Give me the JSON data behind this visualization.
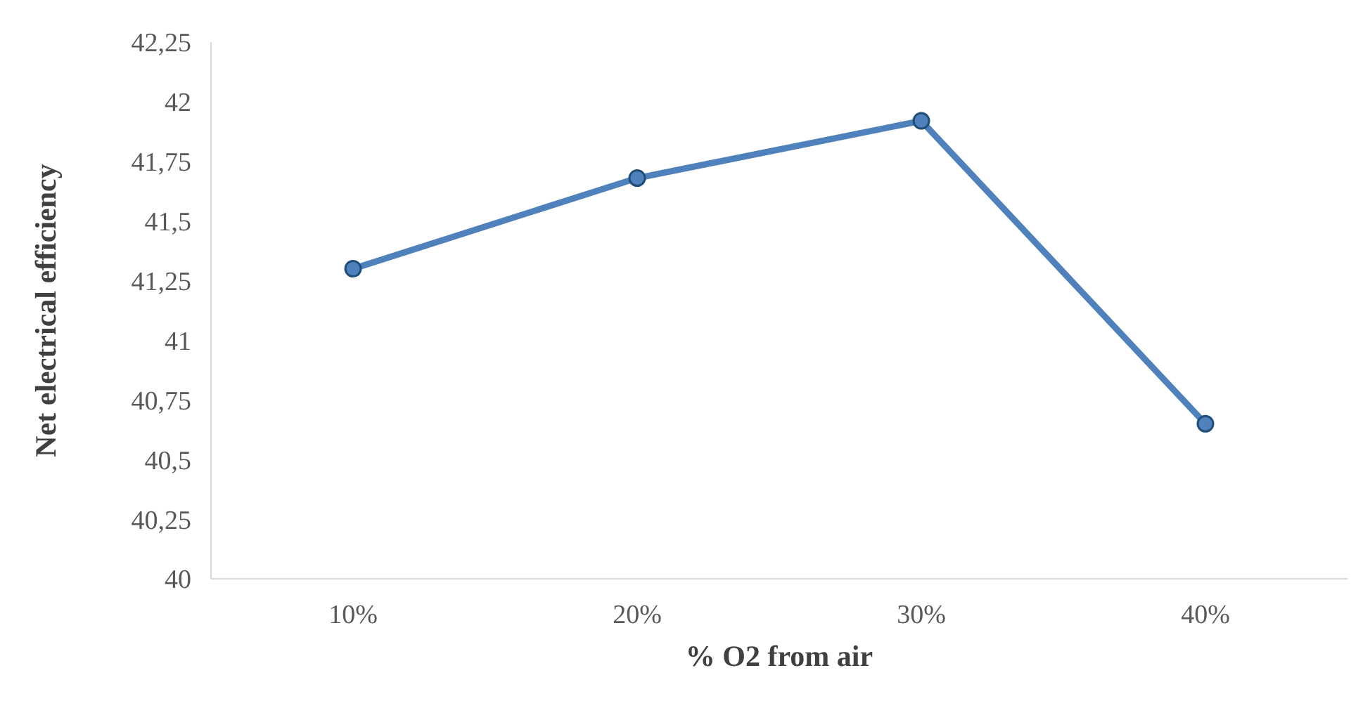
{
  "chart_data": {
    "type": "line",
    "xlabel": "% O2 from air",
    "ylabel": "Net electrical efficiency",
    "categories": [
      "10%",
      "20%",
      "30%",
      "40%"
    ],
    "series": [
      {
        "color": "#4f81bd",
        "values": [
          41.3,
          41.68,
          41.92,
          40.65
        ]
      }
    ],
    "ylim": [
      40,
      42.25
    ],
    "yticks": [
      {
        "value": 40,
        "label": "40"
      },
      {
        "value": 40.25,
        "label": "40,25"
      },
      {
        "value": 40.5,
        "label": "40,5"
      },
      {
        "value": 40.75,
        "label": "40,75"
      },
      {
        "value": 41,
        "label": "41"
      },
      {
        "value": 41.25,
        "label": "41,25"
      },
      {
        "value": 41.5,
        "label": "41,5"
      },
      {
        "value": 41.75,
        "label": "41,75"
      },
      {
        "value": 42,
        "label": "42"
      },
      {
        "value": 42.25,
        "label": "42,25"
      }
    ],
    "grid": false,
    "legend": false,
    "marker": "circle",
    "line_style": "solid"
  }
}
